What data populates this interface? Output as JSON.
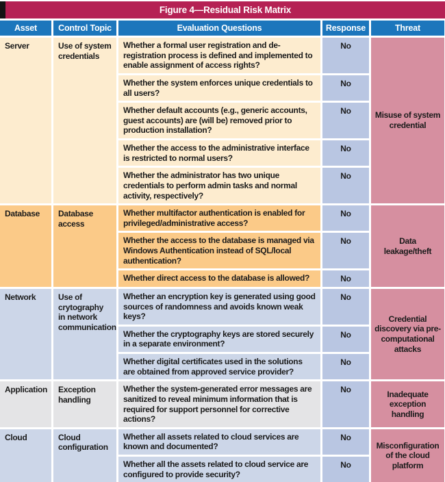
{
  "title": "Figure 4—Residual Risk Matrix",
  "columns": [
    "Asset",
    "Control Topic",
    "Evaluation Questions",
    "Response",
    "Threat"
  ],
  "colors": {
    "title_bar": "#b52154",
    "title_notch": "#141414",
    "header_bar": "#1c76bc",
    "header_text": "#ffffff",
    "body_text": "#1b1b1b",
    "response_cell": "#b9c6e2",
    "threat_cell": "#d68fa0",
    "section_server": "#fdeccf",
    "section_database": "#fbca88",
    "section_network": "#ccd6e8",
    "section_application": "#e4e4e6",
    "section_cloud": "#ccd6e8"
  },
  "sections": [
    {
      "asset": "Server",
      "control_topic": "Use of system credentials",
      "theme": "section_server",
      "threat": "Misuse of system credential",
      "questions": [
        {
          "text": "Whether a formal user registration and de-registration process is defined and implemented to enable assignment of access rights?",
          "response": "No",
          "lines": 3
        },
        {
          "text": "Whether the system enforces unique credentials to all users?",
          "response": "No",
          "lines": 2
        },
        {
          "text": "Whether default accounts (e.g., generic accounts, guest accounts) are (will be) removed prior to production installation?",
          "response": "No",
          "lines": 3
        },
        {
          "text": "Whether the access to the administrative interface is restricted to normal users?",
          "response": "No",
          "lines": 2
        },
        {
          "text": "Whether the administrator has two unique credentials to perform admin tasks and normal activity, respectively?",
          "response": "No",
          "lines": 2
        }
      ]
    },
    {
      "asset": "Database",
      "control_topic": "Database access",
      "theme": "section_database",
      "threat": "Data leakage/theft",
      "questions": [
        {
          "text": "Whether multifactor authentication is enabled for privileged/administrative access?",
          "response": "No",
          "lines": 2
        },
        {
          "text": "Whether the access to the database is managed via Windows Authentication instead of SQL/local authentication?",
          "response": "No",
          "lines": 3
        },
        {
          "text": "Whether direct access to the database is allowed?",
          "response": "No",
          "lines": 1
        }
      ]
    },
    {
      "asset": "Network",
      "control_topic": "Use of crytography in network communication",
      "theme": "section_network",
      "threat": "Credential discovery via pre-computational attacks",
      "questions": [
        {
          "text": "Whether an encryption key is generated using good sources of randomness and avoids known weak keys?",
          "response": "No",
          "lines": 2
        },
        {
          "text": "Whether the cryptography keys are stored securely in a separate environment?",
          "response": "No",
          "lines": 2
        },
        {
          "text": "Whether digital certificates used in the solutions are obtained from approved service provider?",
          "response": "No",
          "lines": 2
        }
      ]
    },
    {
      "asset": "Application",
      "control_topic": "Exception handling",
      "theme": "section_application",
      "threat": "Inadequate exception handling",
      "questions": [
        {
          "text": "Whether the system-generated error messages are sanitized to reveal minimum information that is required for support personnel for corrective actions?",
          "response": "No",
          "lines": 3
        }
      ]
    },
    {
      "asset": "Cloud",
      "control_topic": "Cloud configuration",
      "theme": "section_cloud",
      "threat": "Misconfiguration of the cloud platform",
      "questions": [
        {
          "text": "Whether all assets related to cloud services are known and documented?",
          "response": "No",
          "lines": 2
        },
        {
          "text": "Whether all the assets related to cloud service are configured to provide security?",
          "response": "No",
          "lines": 2
        }
      ]
    }
  ]
}
